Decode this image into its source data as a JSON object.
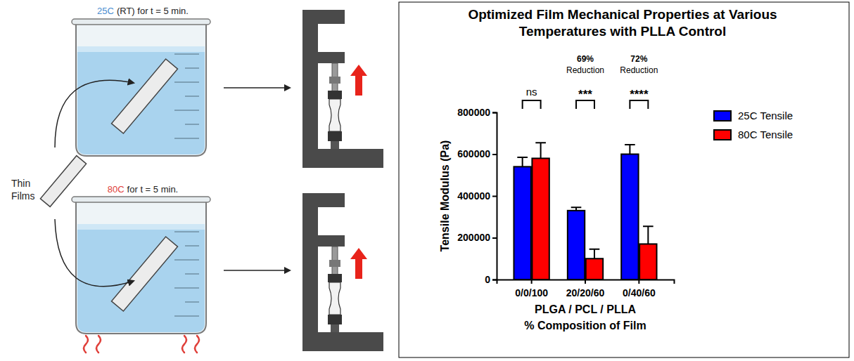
{
  "chart_data": {
    "type": "bar",
    "title": "Optimized Film Mechanical Properties at Various Temperatures with PLLA Control",
    "x_label": "PLGA / PCL / PLLA",
    "x_sublabel": "% Composition of Film",
    "y_label": "Tensile Modulus (Pa)",
    "categories": [
      "0/0/100",
      "20/20/60",
      "0/40/60"
    ],
    "series": [
      {
        "name": "25C Tensile",
        "color": "#0000ff",
        "values": [
          540000,
          330000,
          600000
        ],
        "errors": [
          45000,
          15000,
          45000
        ]
      },
      {
        "name": "80C Tensile",
        "color": "#ff0000",
        "values": [
          580000,
          100000,
          170000
        ],
        "errors": [
          75000,
          45000,
          85000
        ]
      }
    ],
    "ylim": [
      0,
      800000
    ],
    "yticks": [
      0,
      200000,
      400000,
      600000,
      800000
    ],
    "grid": false,
    "legend": "right",
    "annotations": [
      {
        "category": "0/0/100",
        "text": "ns"
      },
      {
        "category": "20/20/60",
        "text": "***",
        "reduction": {
          "value": 69,
          "label": "69%"
        },
        "reduction_text": "Reduction"
      },
      {
        "category": "0/40/60",
        "text": "****",
        "reduction": {
          "value": 72,
          "label": "72%"
        },
        "reduction_text": "Reduction"
      }
    ]
  },
  "diagram": {
    "film_label": "Thin Films",
    "conditions": [
      {
        "temperature": "25C",
        "detail": "(RT) for t = 5 min."
      },
      {
        "temperature": "80C",
        "detail": "for t = 5 min."
      }
    ]
  }
}
